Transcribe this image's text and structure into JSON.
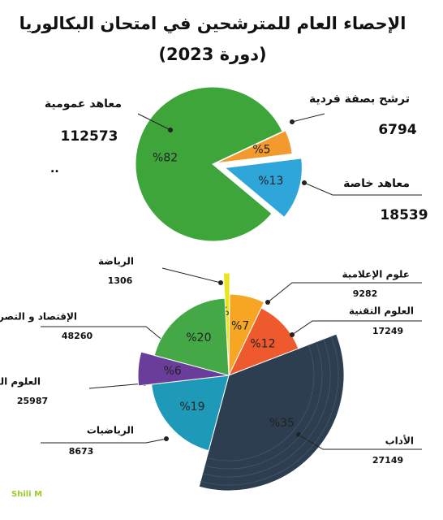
{
  "chart_data": [
    {
      "type": "pie",
      "title": "الإحصاء العام للمترشحين في امتحان البكالوريا",
      "subtitle": "(دورة 2023)",
      "categories": [
        "ترشح بصفة فردية",
        "معاهد خاصة",
        "معاهد عمومية"
      ],
      "values": [
        5,
        13,
        82
      ],
      "value_labels": [
        "%5",
        "%13",
        "%82"
      ],
      "counts": [
        6794,
        18539,
        112573
      ],
      "colors": [
        "#f39a2f",
        "#2fa6d9",
        "#3da53a"
      ],
      "annotation": ".."
    },
    {
      "type": "pie",
      "categories": [
        "الرياضة",
        "علوم الإعلامية",
        "العلوم التقنية",
        "الإقتصاد و التصرف",
        "العلوم التجريبية",
        "الرياضيات",
        "الأداب"
      ],
      "values": [
        1,
        7,
        12,
        35,
        19,
        6,
        20
      ],
      "value_labels": [
        "%1",
        "%7",
        "%12",
        "%35",
        "%19",
        "%6",
        "%20"
      ],
      "counts": [
        1306,
        9282,
        17249,
        48260,
        25987,
        8673,
        27149
      ],
      "colors": [
        "#e8e61a",
        "#f6a623",
        "#ee5a2e",
        "#2c3e50",
        "#1e9ab8",
        "#6a3d9a",
        "#45a846"
      ],
      "watermark": "Shili M"
    }
  ]
}
